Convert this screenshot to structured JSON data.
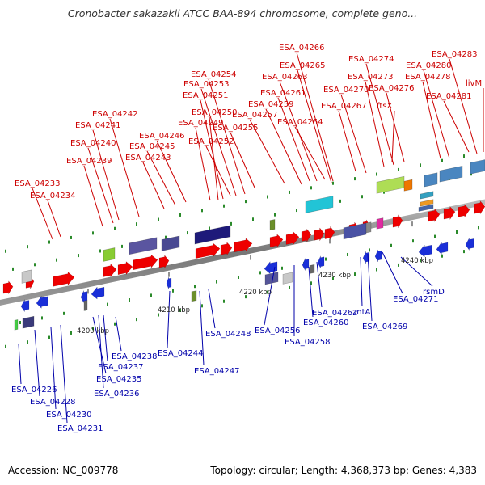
{
  "title": "Cronobacter sakazakii ATCC BAA-894 chromosome, complete geno...",
  "footer": {
    "accession": "Accession: NC_009778",
    "stats": "Topology: circular; Length: 4,368,373 bp; Genes: 4,383"
  },
  "colors": {
    "forward_label": "#cc0000",
    "reverse_label": "#0000aa",
    "forward_gene": "#ee0000",
    "reverse_gene": "#1a2fd8",
    "backbone": "#8a8a8a",
    "tick": "#2a8a2a"
  },
  "ruler": [
    {
      "label": "4200 kbp"
    },
    {
      "label": "4210 kbp"
    },
    {
      "label": "4220 kbp"
    },
    {
      "label": "4230 kbp"
    },
    {
      "label": "4240 kbp"
    }
  ],
  "forward_labels": [
    "ESA_04233",
    "ESA_04234",
    "ESA_04239",
    "ESA_04240",
    "ESA_04241",
    "ESA_04242",
    "ESA_04243",
    "ESA_04245",
    "ESA_04246",
    "ESA_04249",
    "ESA_04250",
    "ESA_04251",
    "ESA_04252",
    "ESA_04253",
    "ESA_04254",
    "ESA_04255",
    "ESA_04257",
    "ESA_04259",
    "ESA_04261",
    "ESA_04263",
    "ESA_04264",
    "ESA_04265",
    "ESA_04266",
    "ESA_04267",
    "ESA_04270",
    "ESA_04273",
    "ftsX",
    "ESA_04274",
    "ESA_04276",
    "ESA_04278",
    "ESA_04280",
    "ESA_04281",
    "ESA_04283",
    "livM"
  ],
  "reverse_labels": [
    "ESA_04226",
    "ESA_04228",
    "ESA_04230",
    "ESA_04231",
    "ESA_04235",
    "ESA_04236",
    "ESA_04237",
    "ESA_04238",
    "ESA_04244",
    "ESA_04247",
    "ESA_04248",
    "ESA_04256",
    "ESA_04258",
    "ESA_04260",
    "ESA_04262",
    "zntA",
    "ESA_04269",
    "ESA_04271",
    "rsmD"
  ]
}
